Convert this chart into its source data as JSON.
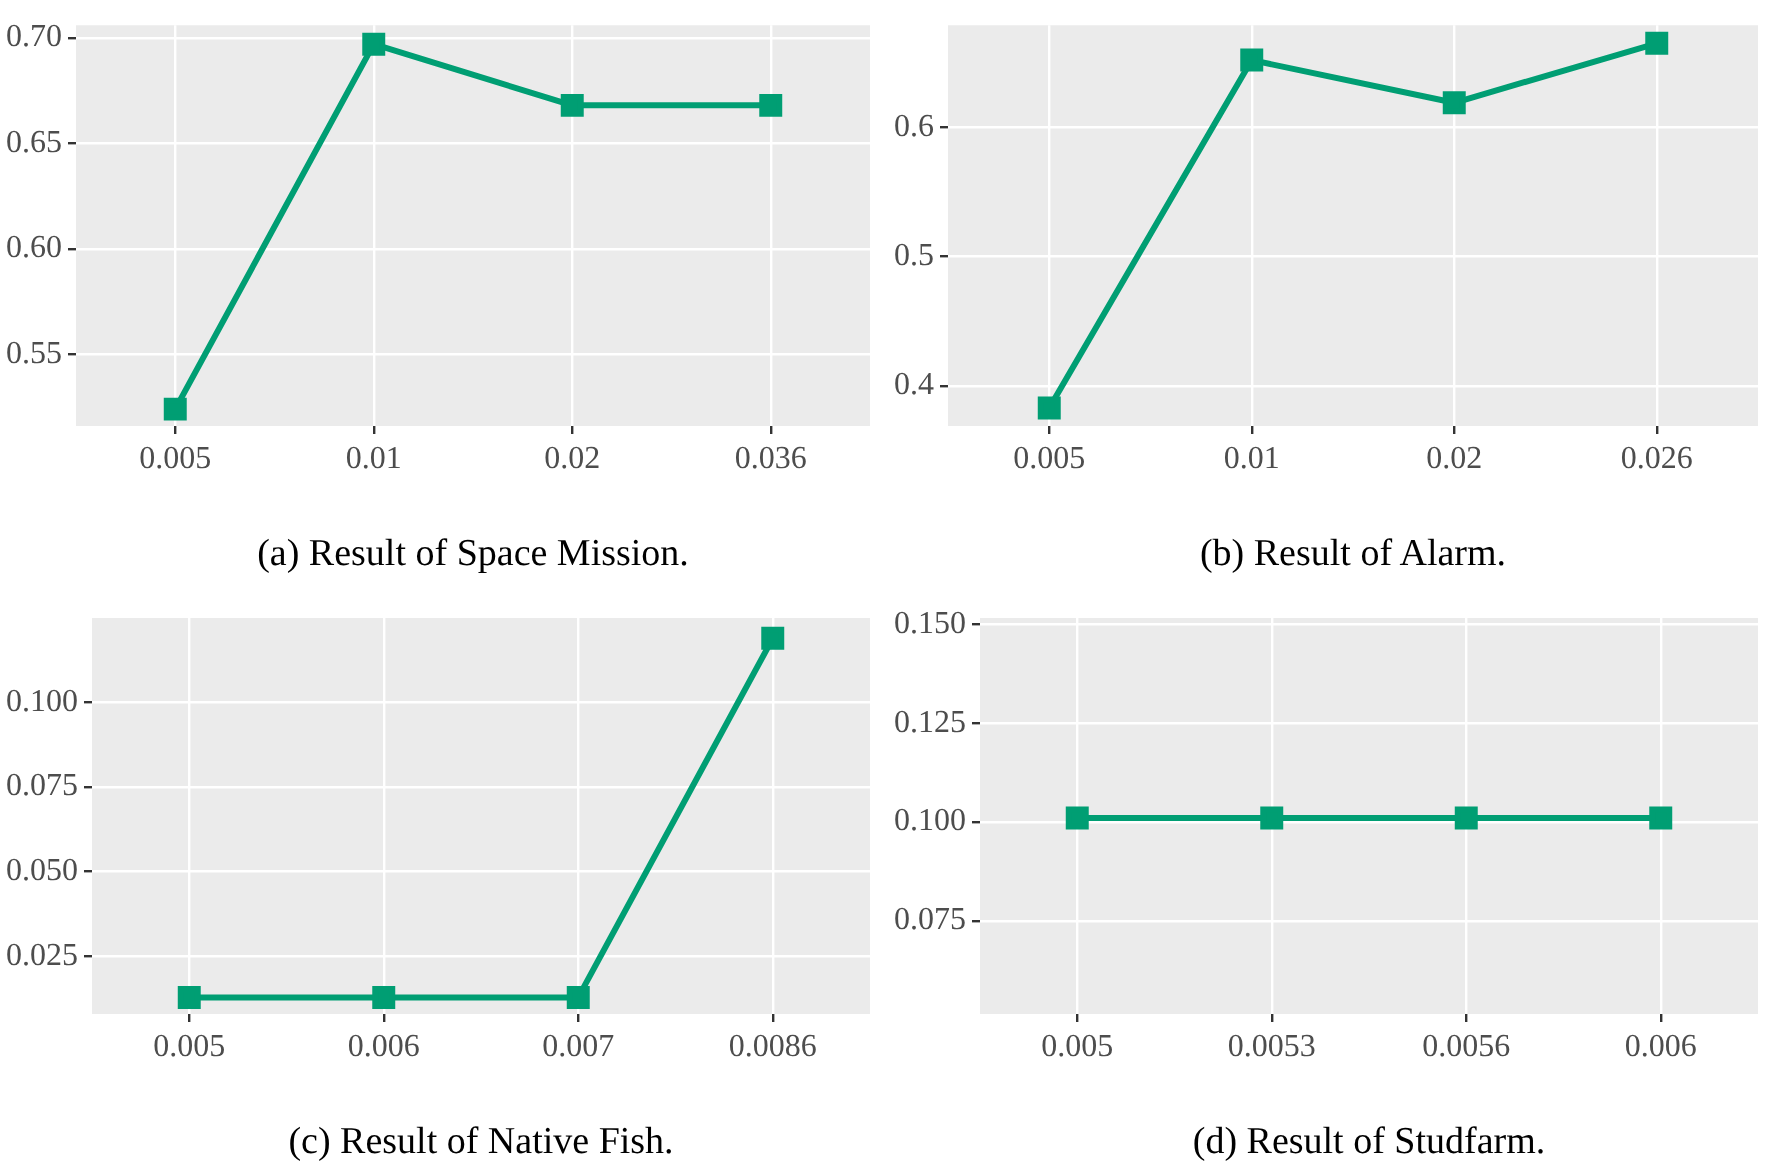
{
  "chart_data": [
    {
      "type": "line",
      "xlabel": "(a) Result of Space Mission.",
      "categories": [
        "0.005",
        "0.01",
        "0.02",
        "0.036"
      ],
      "series": [
        {
          "color": "#009e73",
          "values": [
            0.524,
            0.697,
            0.668,
            0.668
          ]
        }
      ],
      "ylim": [
        0.516,
        0.706
      ],
      "yticks": [
        {
          "value": 0.55,
          "label": "0.55"
        },
        {
          "value": 0.6,
          "label": "0.60"
        },
        {
          "value": 0.65,
          "label": "0.65"
        },
        {
          "value": 0.7,
          "label": "0.70"
        }
      ],
      "grid": true,
      "marker": "square",
      "line_style": "solid"
    },
    {
      "type": "line",
      "xlabel": "(b) Result of Alarm.",
      "categories": [
        "0.005",
        "0.01",
        "0.02",
        "0.026"
      ],
      "series": [
        {
          "color": "#009e73",
          "values": [
            0.383,
            0.652,
            0.619,
            0.665
          ]
        }
      ],
      "ylim": [
        0.369,
        0.679
      ],
      "yticks": [
        0.4,
        0.5,
        0.6
      ],
      "grid": true,
      "marker": "square",
      "line_style": "solid"
    },
    {
      "type": "line",
      "xlabel": "(c) Result of Native Fish.",
      "categories": [
        "0.005",
        "0.006",
        "0.007",
        "0.0086"
      ],
      "series": [
        {
          "color": "#009e73",
          "values": [
            0.0128,
            0.0128,
            0.0128,
            0.119
          ]
        }
      ],
      "ylim": [
        0.0079,
        0.125
      ],
      "yticks": [
        0.025,
        {
          "value": 0.05,
          "label": "0.050"
        },
        0.075,
        {
          "value": 0.1,
          "label": "0.100"
        }
      ],
      "grid": true,
      "marker": "square",
      "line_style": "solid"
    },
    {
      "type": "line",
      "xlabel": "(d) Result of Studfarm.",
      "categories": [
        "0.005",
        "0.0053",
        "0.0056",
        "0.006"
      ],
      "series": [
        {
          "color": "#009e73",
          "values": [
            0.101,
            0.101,
            0.101,
            0.101
          ]
        }
      ],
      "ylim": [
        0.0514,
        0.1516
      ],
      "yticks": [
        0.075,
        {
          "value": 0.1,
          "label": "0.100"
        },
        0.125,
        {
          "value": 0.15,
          "label": "0.150"
        }
      ],
      "grid": true,
      "marker": "square",
      "line_style": "solid"
    }
  ]
}
